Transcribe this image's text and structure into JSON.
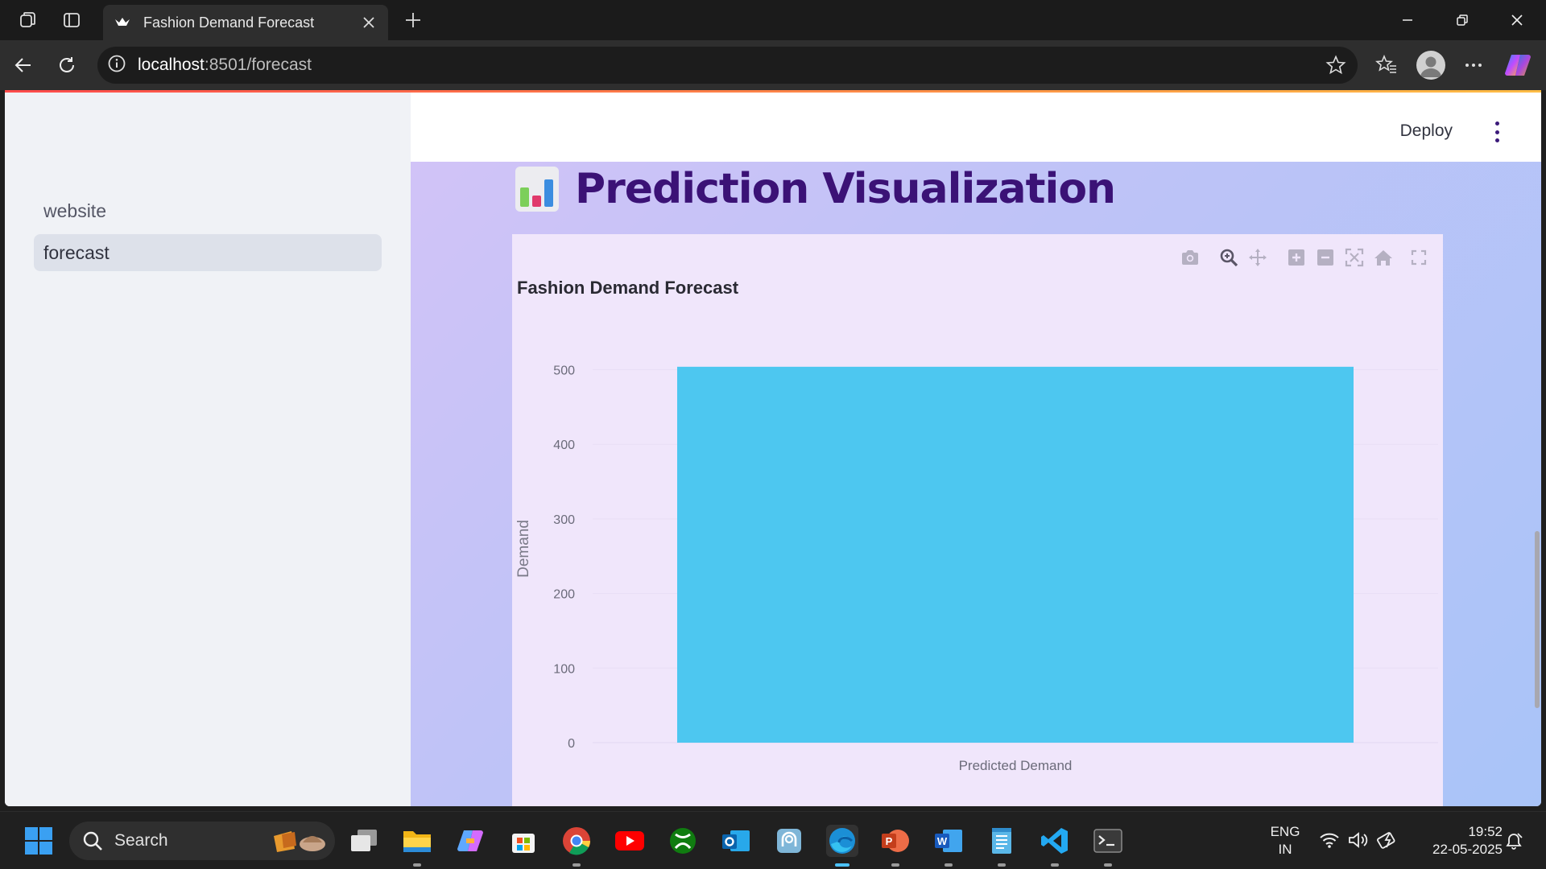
{
  "browser": {
    "tab_title": "Fashion Demand Forecast",
    "url_host": "localhost",
    "url_rest": ":8501/forecast"
  },
  "sidebar": {
    "items": [
      {
        "label": "website",
        "active": false
      },
      {
        "label": "forecast",
        "active": true
      }
    ]
  },
  "header": {
    "deploy_label": "Deploy"
  },
  "main": {
    "page_title": "Prediction Visualization"
  },
  "chart_data": {
    "type": "bar",
    "title": "Fashion Demand Forecast",
    "categories": [
      "Predicted Demand"
    ],
    "values": [
      504
    ],
    "xlabel": "",
    "ylabel": "Demand",
    "ylim": [
      0,
      520
    ],
    "yticks": [
      0,
      100,
      200,
      300,
      400,
      500
    ],
    "bar_color": "#4dc7f0",
    "grid": true
  },
  "taskbar": {
    "search_label": "Search",
    "lang_line1": "ENG",
    "lang_line2": "IN",
    "time": "19:52",
    "date": "22-05-2025"
  },
  "colors": {
    "accent_title": "#3b1276",
    "chart_bg": "#f0e6fb",
    "sidebar_bg": "#f0f2f6"
  }
}
